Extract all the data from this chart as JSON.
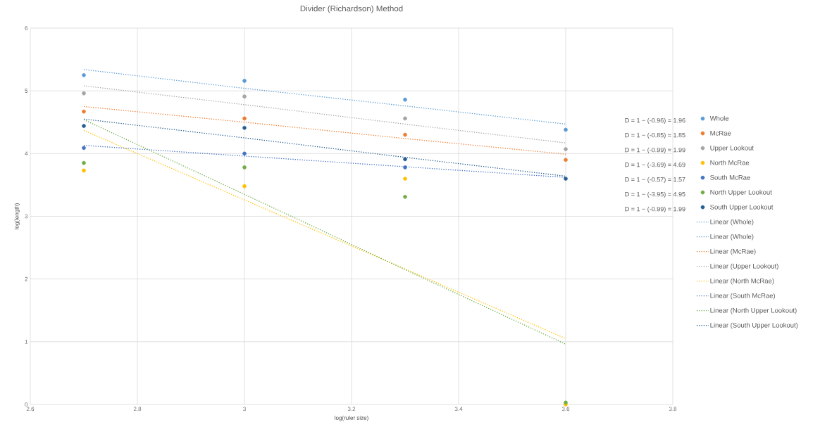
{
  "chart_data": {
    "type": "scatter",
    "title": "Divider (Richardson) Method",
    "xlabel": "log(ruler size)",
    "ylabel": "log(length)",
    "x": [
      2.7,
      3,
      3.3,
      3.6
    ],
    "series": [
      {
        "name": "Whole",
        "color": "#5b9bd5",
        "values": [
          5.25,
          5.16,
          4.86,
          4.38
        ]
      },
      {
        "name": "McRae",
        "color": "#ed7d31",
        "values": [
          4.67,
          4.56,
          4.3,
          3.9
        ]
      },
      {
        "name": "Upper Lookout",
        "color": "#a5a5a5",
        "values": [
          4.96,
          4.91,
          4.56,
          4.07
        ]
      },
      {
        "name": "North McRae",
        "color": "#ffc000",
        "values": [
          3.73,
          3.48,
          3.6,
          0
        ]
      },
      {
        "name": "South McRae",
        "color": "#4472c4",
        "values": [
          4.09,
          4.0,
          3.78,
          null
        ]
      },
      {
        "name": "North Upper Lookout",
        "color": "#70ad47",
        "values": [
          3.85,
          3.78,
          3.31,
          0.03
        ]
      },
      {
        "name": "South Upper Lookout",
        "color": "#255e91",
        "values": [
          4.44,
          4.41,
          3.91,
          3.6
        ]
      },
      {
        "name": "Linear (Whole)",
        "type": "line",
        "marker": "none",
        "color": "#5b9bd5",
        "values": [
          5.34,
          5.04,
          4.76,
          4.47
        ]
      },
      {
        "name": "Linear (Whole)",
        "type": "line",
        "marker": "none",
        "color": "#5b9bd5",
        "values": [
          null,
          null,
          null,
          null
        ]
      },
      {
        "name": "Linear (McRae)",
        "type": "line",
        "marker": "none",
        "color": "#ed7d31",
        "values": [
          4.75,
          4.5,
          4.24,
          3.99
        ]
      },
      {
        "name": "Linear (Upper Lookout)",
        "type": "line",
        "marker": "none",
        "color": "#a5a5a5",
        "values": [
          5.08,
          4.78,
          4.47,
          4.17
        ]
      },
      {
        "name": "Linear (North McRae)",
        "type": "line",
        "marker": "none",
        "color": "#ffc000",
        "values": [
          4.37,
          3.26,
          2.16,
          1.05
        ]
      },
      {
        "name": "Linear (South McRae)",
        "type": "line",
        "marker": "none",
        "color": "#4472c4",
        "values": [
          4.13,
          3.96,
          3.79,
          3.62
        ]
      },
      {
        "name": "Linear (North Upper Lookout)",
        "type": "line",
        "marker": "none",
        "color": "#70ad47",
        "values": [
          4.54,
          3.35,
          2.15,
          0.96
        ]
      },
      {
        "name": "Linear (South Upper Lookout)",
        "type": "line",
        "marker": "none",
        "color": "#255e91",
        "values": [
          4.55,
          4.25,
          3.94,
          3.64
        ]
      }
    ],
    "annotations": [
      "D = 1 − (-0.96) = 1.96",
      "D = 1 − (-0.85) = 1.85",
      "D = 1 − (-0.99) = 1.99",
      "D = 1 − (-3.69) = 4.69",
      "D = 1 − (-0.57) = 1.57",
      "D = 1 − (-3.95) = 4.95",
      "D = 1 − (-0.99) = 1.99"
    ],
    "xlim": [
      2.6,
      3.8
    ],
    "xticks": [
      2.6,
      2.8,
      3,
      3.2,
      3.4,
      3.6,
      3.8
    ],
    "ylim": [
      0,
      6
    ],
    "yticks": [
      0,
      1,
      2,
      3,
      4,
      5,
      6
    ],
    "grid": true,
    "legend": "right",
    "marker": "circle",
    "line_style": "dotted"
  }
}
